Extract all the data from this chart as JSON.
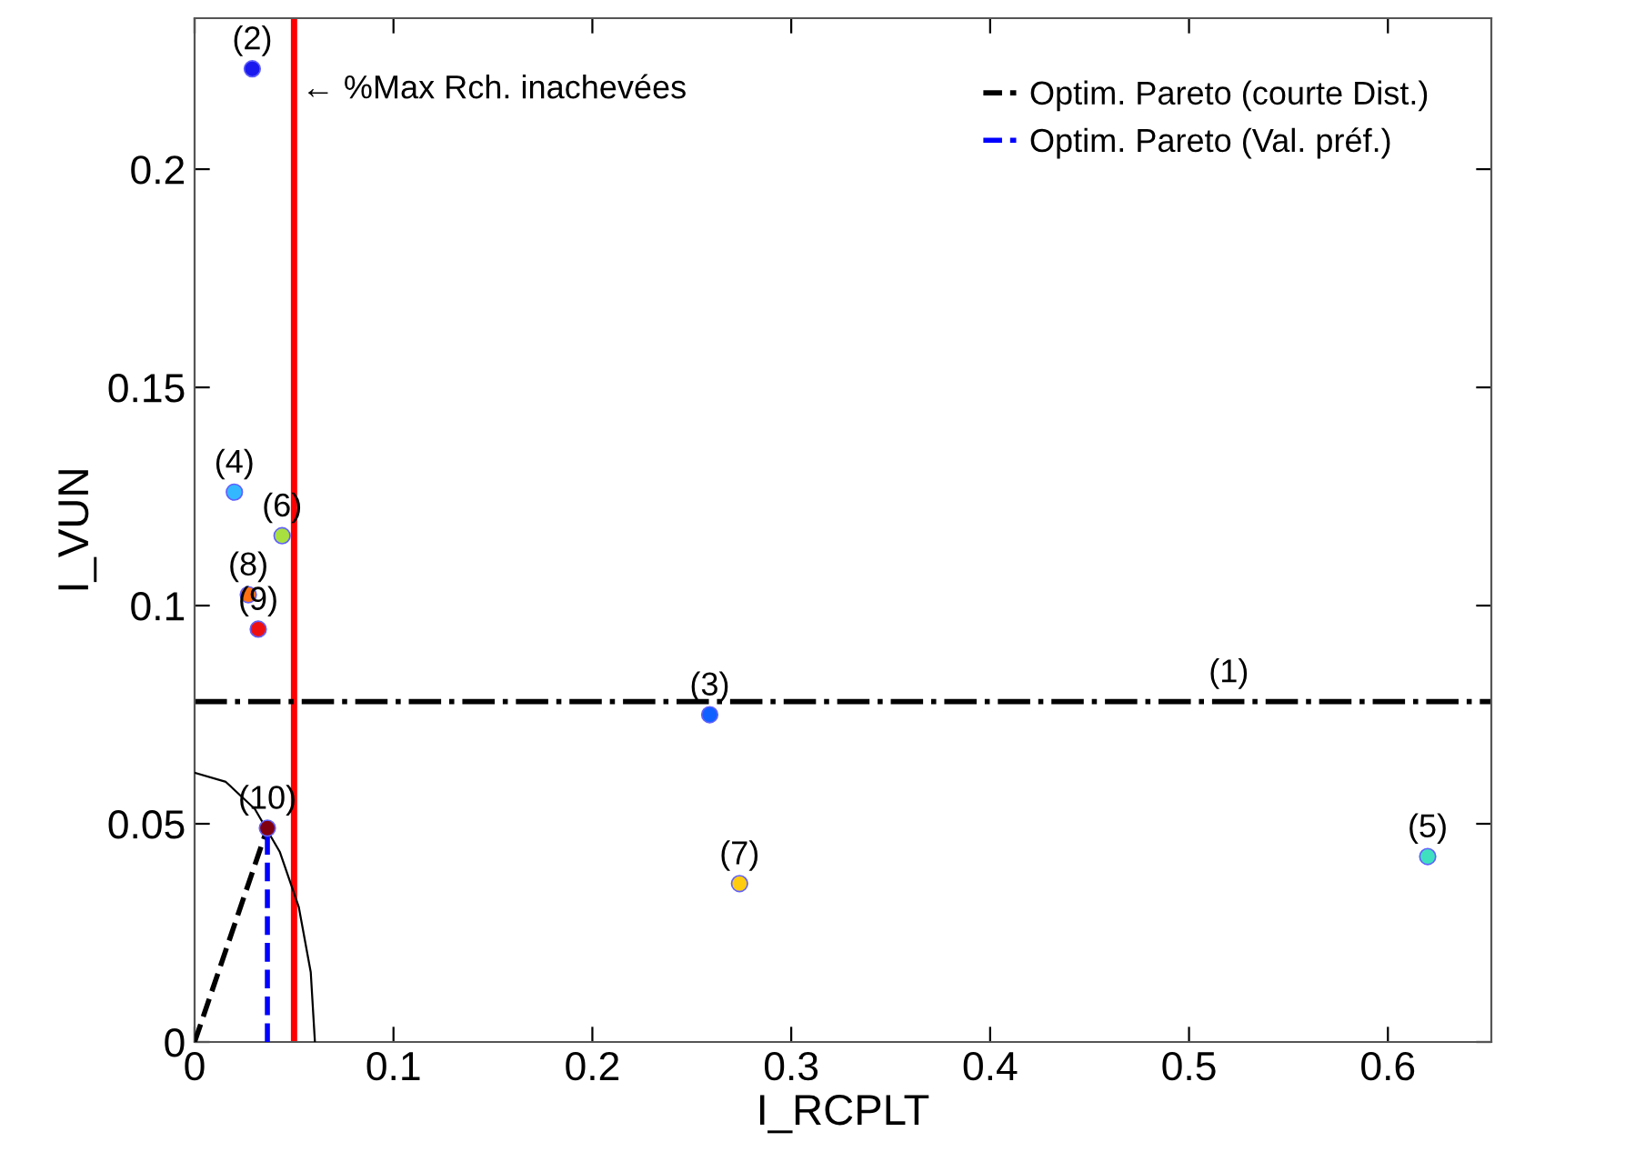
{
  "chart_data": {
    "type": "scatter",
    "xlabel": "I_RCPLT",
    "ylabel": "I_VUN",
    "xlim": [
      0,
      0.652
    ],
    "ylim": [
      0,
      0.2346
    ],
    "xticks": [
      0,
      0.1,
      0.2,
      0.3,
      0.4,
      0.5,
      0.6
    ],
    "yticks": [
      0,
      0.05,
      0.1,
      0.15,
      0.2
    ],
    "grid": false,
    "legend": "top right",
    "annotations": [
      {
        "text": "(1)",
        "x": 0.52,
        "y": 0.078
      },
      {
        "text": "(2)",
        "x": 0.029,
        "y": 0.223
      },
      {
        "text": "(3)",
        "x": 0.259,
        "y": 0.075
      },
      {
        "text": "(4)",
        "x": 0.02,
        "y": 0.126
      },
      {
        "text": "(5)",
        "x": 0.62,
        "y": 0.0425
      },
      {
        "text": "(6)",
        "x": 0.044,
        "y": 0.116
      },
      {
        "text": "(7)",
        "x": 0.274,
        "y": 0.0363
      },
      {
        "text": "(8)",
        "x": 0.027,
        "y": 0.1025
      },
      {
        "text": "(9)",
        "x": 0.032,
        "y": 0.0946
      },
      {
        "text": "(10)",
        "x": 0.0366,
        "y": 0.049
      }
    ],
    "series": [
      {
        "marker": "circle",
        "x": [
          0.029,
          0.259,
          0.02,
          0.62,
          0.044,
          0.274,
          0.027,
          0.032,
          0.0366
        ],
        "values": [
          0.223,
          0.075,
          0.126,
          0.0425,
          0.116,
          0.0363,
          0.1025,
          0.0946,
          0.049
        ],
        "colors": [
          "#1a1aee",
          "#1060ff",
          "#33b8ff",
          "#3ee0c0",
          "#a8e040",
          "#ffcc10",
          "#ff7010",
          "#ee1010",
          "#800010"
        ]
      },
      {
        "type": "line",
        "name": "Optim. Pareto (courte Dist.)",
        "color": "#000000",
        "line_style": "dashed",
        "x": [
          0,
          0.0366
        ],
        "values": [
          0,
          0.049
        ]
      },
      {
        "type": "line",
        "name": "Optim. Pareto (Val. préf.)",
        "color": "#0000ff",
        "line_style": "dashed",
        "x": [
          0.0366,
          0.0366
        ],
        "values": [
          0,
          0.049
        ]
      },
      {
        "type": "line",
        "color": "#000000",
        "line_style": "solid",
        "x": [
          0.0605,
          0.0584,
          0.0524,
          0.0428,
          0.0303,
          0.0157,
          0
        ],
        "values": [
          0,
          0.016,
          0.0309,
          0.0436,
          0.0534,
          0.0596,
          0.0617
        ]
      }
    ],
    "ref_lines": [
      {
        "axis": "x",
        "value": 0.05,
        "label": "← %Max Rch. inachevées",
        "color": "#ff0000",
        "line_style": "solid"
      },
      {
        "axis": "y",
        "value": 0.078,
        "color": "#000000",
        "line_style": "dashdot"
      }
    ]
  }
}
